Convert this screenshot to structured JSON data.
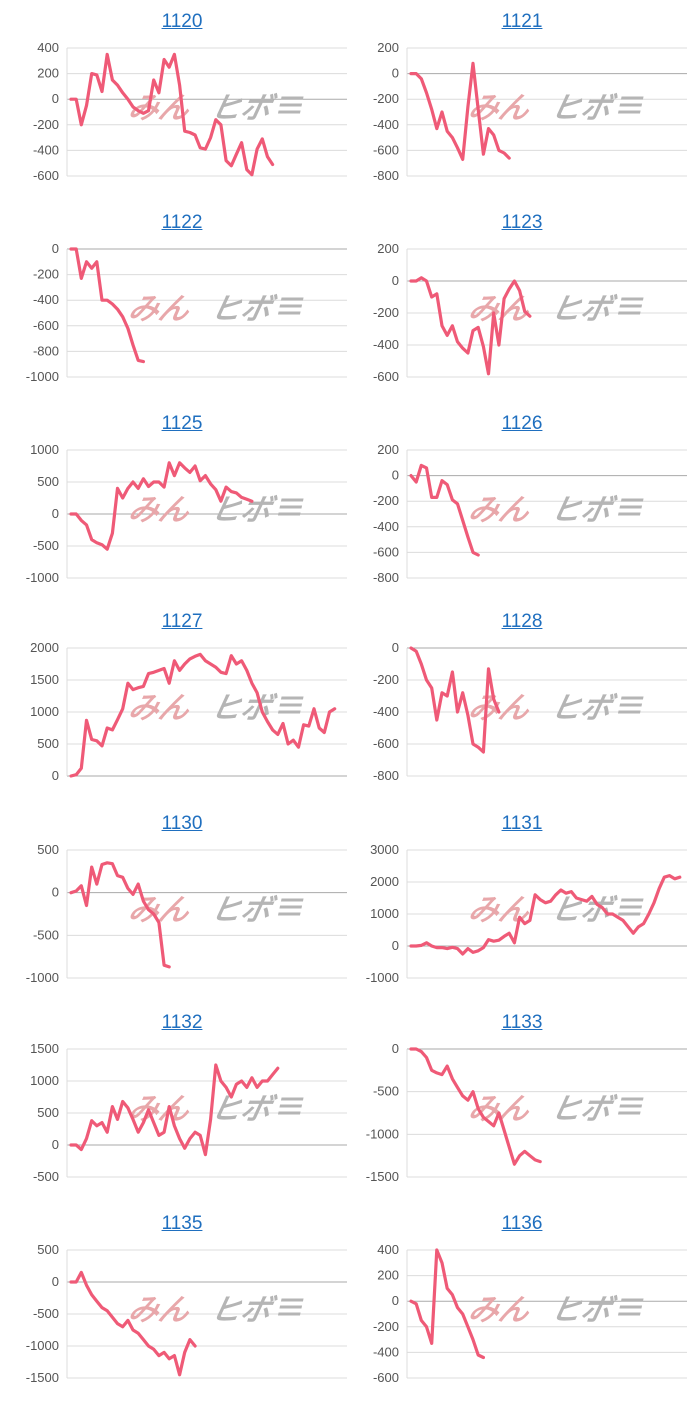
{
  "colors": {
    "line": "#ef5a77",
    "grid": "#dcdcdc",
    "baseline": "#aaaaaa",
    "title_link": "#1f6fbf",
    "tick": "#555555",
    "watermark_pink": "#e8a7aa",
    "watermark_gray": "#b5b5b5"
  },
  "watermark": {
    "left": "みん",
    "right": "ヒボ"
  },
  "chart_data": [
    {
      "type": "line",
      "title": "1120",
      "yticks": [
        400,
        200,
        0,
        -200,
        -400,
        -600
      ],
      "ylim": [
        -600,
        400
      ],
      "grid": true,
      "values": [
        0,
        0,
        -200,
        -50,
        200,
        190,
        60,
        350,
        150,
        110,
        50,
        0,
        -60,
        -90,
        -110,
        -90,
        150,
        50,
        310,
        250,
        350,
        110,
        -250,
        -260,
        -280,
        -380,
        -390,
        -300,
        -160,
        -200,
        -480,
        -520,
        -430,
        -340,
        -550,
        -590,
        -390,
        -310,
        -450,
        -510
      ]
    },
    {
      "type": "line",
      "title": "1121",
      "yticks": [
        200,
        0,
        -200,
        -400,
        -600,
        -800
      ],
      "ylim": [
        -800,
        200
      ],
      "grid": true,
      "values": [
        0,
        0,
        -40,
        -150,
        -280,
        -430,
        -300,
        -450,
        -500,
        -580,
        -670,
        -260,
        80,
        -280,
        -630,
        -430,
        -480,
        -600,
        -620,
        -660
      ]
    },
    {
      "type": "line",
      "title": "1122",
      "yticks": [
        0,
        -200,
        -400,
        -600,
        -800,
        -1000
      ],
      "ylim": [
        -1000,
        0
      ],
      "grid": true,
      "values": [
        0,
        0,
        -230,
        -100,
        -150,
        -100,
        -400,
        -400,
        -430,
        -470,
        -530,
        -620,
        -750,
        -870,
        -880
      ]
    },
    {
      "type": "line",
      "title": "1123",
      "yticks": [
        200,
        0,
        -200,
        -400,
        -600
      ],
      "ylim": [
        -600,
        200
      ],
      "grid": true,
      "values": [
        0,
        0,
        20,
        0,
        -100,
        -80,
        -280,
        -340,
        -280,
        -380,
        -420,
        -450,
        -310,
        -290,
        -410,
        -580,
        -200,
        -400,
        -110,
        -50,
        0,
        -60,
        -190,
        -220
      ]
    },
    {
      "type": "line",
      "title": "1125",
      "yticks": [
        1000,
        500,
        0,
        -500,
        -1000
      ],
      "ylim": [
        -1000,
        1000
      ],
      "grid": true,
      "values": [
        0,
        0,
        -100,
        -170,
        -400,
        -450,
        -480,
        -550,
        -300,
        400,
        250,
        400,
        500,
        400,
        550,
        430,
        500,
        500,
        420,
        800,
        600,
        800,
        720,
        650,
        750,
        520,
        600,
        470,
        380,
        200,
        420,
        350,
        330,
        260,
        230,
        200
      ]
    },
    {
      "type": "line",
      "title": "1126",
      "yticks": [
        200,
        0,
        -200,
        -400,
        -600,
        -800
      ],
      "ylim": [
        -800,
        200
      ],
      "grid": true,
      "values": [
        0,
        -50,
        80,
        60,
        -170,
        -170,
        -40,
        -70,
        -190,
        -220,
        -350,
        -480,
        -600,
        -620
      ]
    },
    {
      "type": "line",
      "title": "1127",
      "yticks": [
        2000,
        1500,
        1000,
        500,
        0
      ],
      "ylim": [
        0,
        2000
      ],
      "grid": true,
      "values": [
        0,
        20,
        120,
        870,
        570,
        550,
        470,
        750,
        720,
        880,
        1050,
        1450,
        1350,
        1380,
        1400,
        1600,
        1620,
        1650,
        1680,
        1450,
        1800,
        1650,
        1750,
        1830,
        1870,
        1900,
        1800,
        1750,
        1700,
        1620,
        1600,
        1880,
        1750,
        1800,
        1650,
        1450,
        1300,
        1000,
        850,
        720,
        650,
        820,
        500,
        560,
        450,
        800,
        780,
        1050,
        750,
        680,
        1000,
        1050
      ]
    },
    {
      "type": "line",
      "title": "1128",
      "yticks": [
        0,
        -200,
        -400,
        -600,
        -800
      ],
      "ylim": [
        -800,
        0
      ],
      "grid": true,
      "values": [
        0,
        -20,
        -100,
        -200,
        -250,
        -450,
        -280,
        -300,
        -150,
        -400,
        -280,
        -420,
        -600,
        -620,
        -650,
        -130,
        -320,
        -400
      ]
    },
    {
      "type": "line",
      "title": "1130",
      "yticks": [
        500,
        0,
        -500,
        -1000
      ],
      "ylim": [
        -1000,
        500
      ],
      "grid": true,
      "values": [
        0,
        20,
        80,
        -150,
        300,
        100,
        330,
        350,
        340,
        200,
        180,
        50,
        -20,
        100,
        -100,
        -200,
        -250,
        -350,
        -850,
        -870
      ]
    },
    {
      "type": "line",
      "title": "1131",
      "yticks": [
        3000,
        2000,
        1000,
        0,
        -1000
      ],
      "ylim": [
        -1000,
        3000
      ],
      "grid": true,
      "values": [
        0,
        0,
        20,
        100,
        0,
        -50,
        -50,
        -80,
        -40,
        -80,
        -250,
        -80,
        -200,
        -150,
        -50,
        200,
        150,
        180,
        300,
        400,
        100,
        900,
        700,
        800,
        1600,
        1450,
        1350,
        1400,
        1600,
        1750,
        1650,
        1700,
        1500,
        1450,
        1400,
        1550,
        1300,
        1200,
        1000,
        1000,
        900,
        800,
        600,
        400,
        600,
        700,
        1000,
        1350,
        1800,
        2150,
        2200,
        2100,
        2150
      ]
    },
    {
      "type": "line",
      "title": "1132",
      "yticks": [
        1500,
        1000,
        500,
        0,
        -500
      ],
      "ylim": [
        -500,
        1500
      ],
      "grid": true,
      "values": [
        0,
        0,
        -70,
        100,
        380,
        300,
        350,
        200,
        600,
        400,
        680,
        580,
        400,
        200,
        350,
        550,
        350,
        150,
        200,
        600,
        300,
        100,
        -50,
        100,
        200,
        150,
        -150,
        400,
        1250,
        1000,
        900,
        750,
        950,
        1000,
        900,
        1050,
        900,
        1000,
        1000,
        1100,
        1200
      ]
    },
    {
      "type": "line",
      "title": "1133",
      "yticks": [
        0,
        -500,
        -1000,
        -1500
      ],
      "ylim": [
        -1500,
        0
      ],
      "grid": true,
      "values": [
        0,
        0,
        -30,
        -100,
        -250,
        -280,
        -300,
        -200,
        -350,
        -450,
        -550,
        -600,
        -500,
        -700,
        -800,
        -850,
        -900,
        -750,
        -950,
        -1150,
        -1350,
        -1250,
        -1200,
        -1250,
        -1300,
        -1320
      ]
    },
    {
      "type": "line",
      "title": "1135",
      "yticks": [
        500,
        0,
        -500,
        -1000,
        -1500
      ],
      "ylim": [
        -1500,
        500
      ],
      "grid": true,
      "values": [
        0,
        0,
        150,
        -50,
        -200,
        -300,
        -400,
        -450,
        -550,
        -650,
        -700,
        -600,
        -750,
        -800,
        -900,
        -1000,
        -1050,
        -1150,
        -1100,
        -1200,
        -1150,
        -1450,
        -1100,
        -900,
        -1000
      ]
    },
    {
      "type": "line",
      "title": "1136",
      "yticks": [
        400,
        200,
        0,
        -200,
        -400,
        -600
      ],
      "ylim": [
        -600,
        400
      ],
      "grid": true,
      "values": [
        0,
        -20,
        -150,
        -200,
        -330,
        400,
        300,
        100,
        50,
        -50,
        -100,
        -200,
        -300,
        -420,
        -440
      ]
    }
  ]
}
